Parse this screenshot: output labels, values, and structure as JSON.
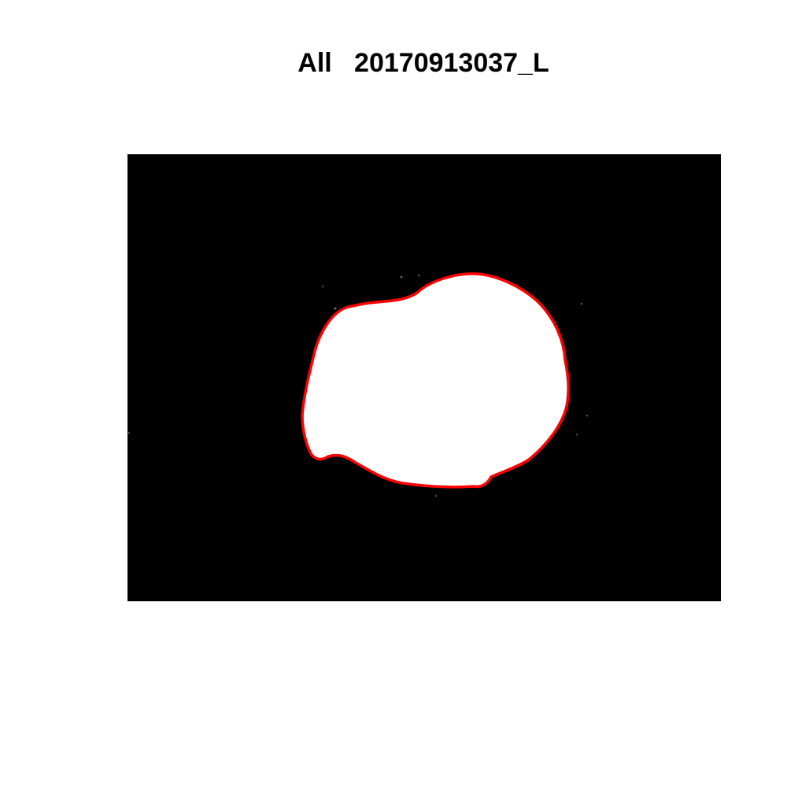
{
  "title": "All   20170913037_L",
  "colors": {
    "background": "#ffffff",
    "image_background": "#000000",
    "region_fill": "#ffffff",
    "contour": "#ff0000",
    "title_text": "#000000"
  }
}
